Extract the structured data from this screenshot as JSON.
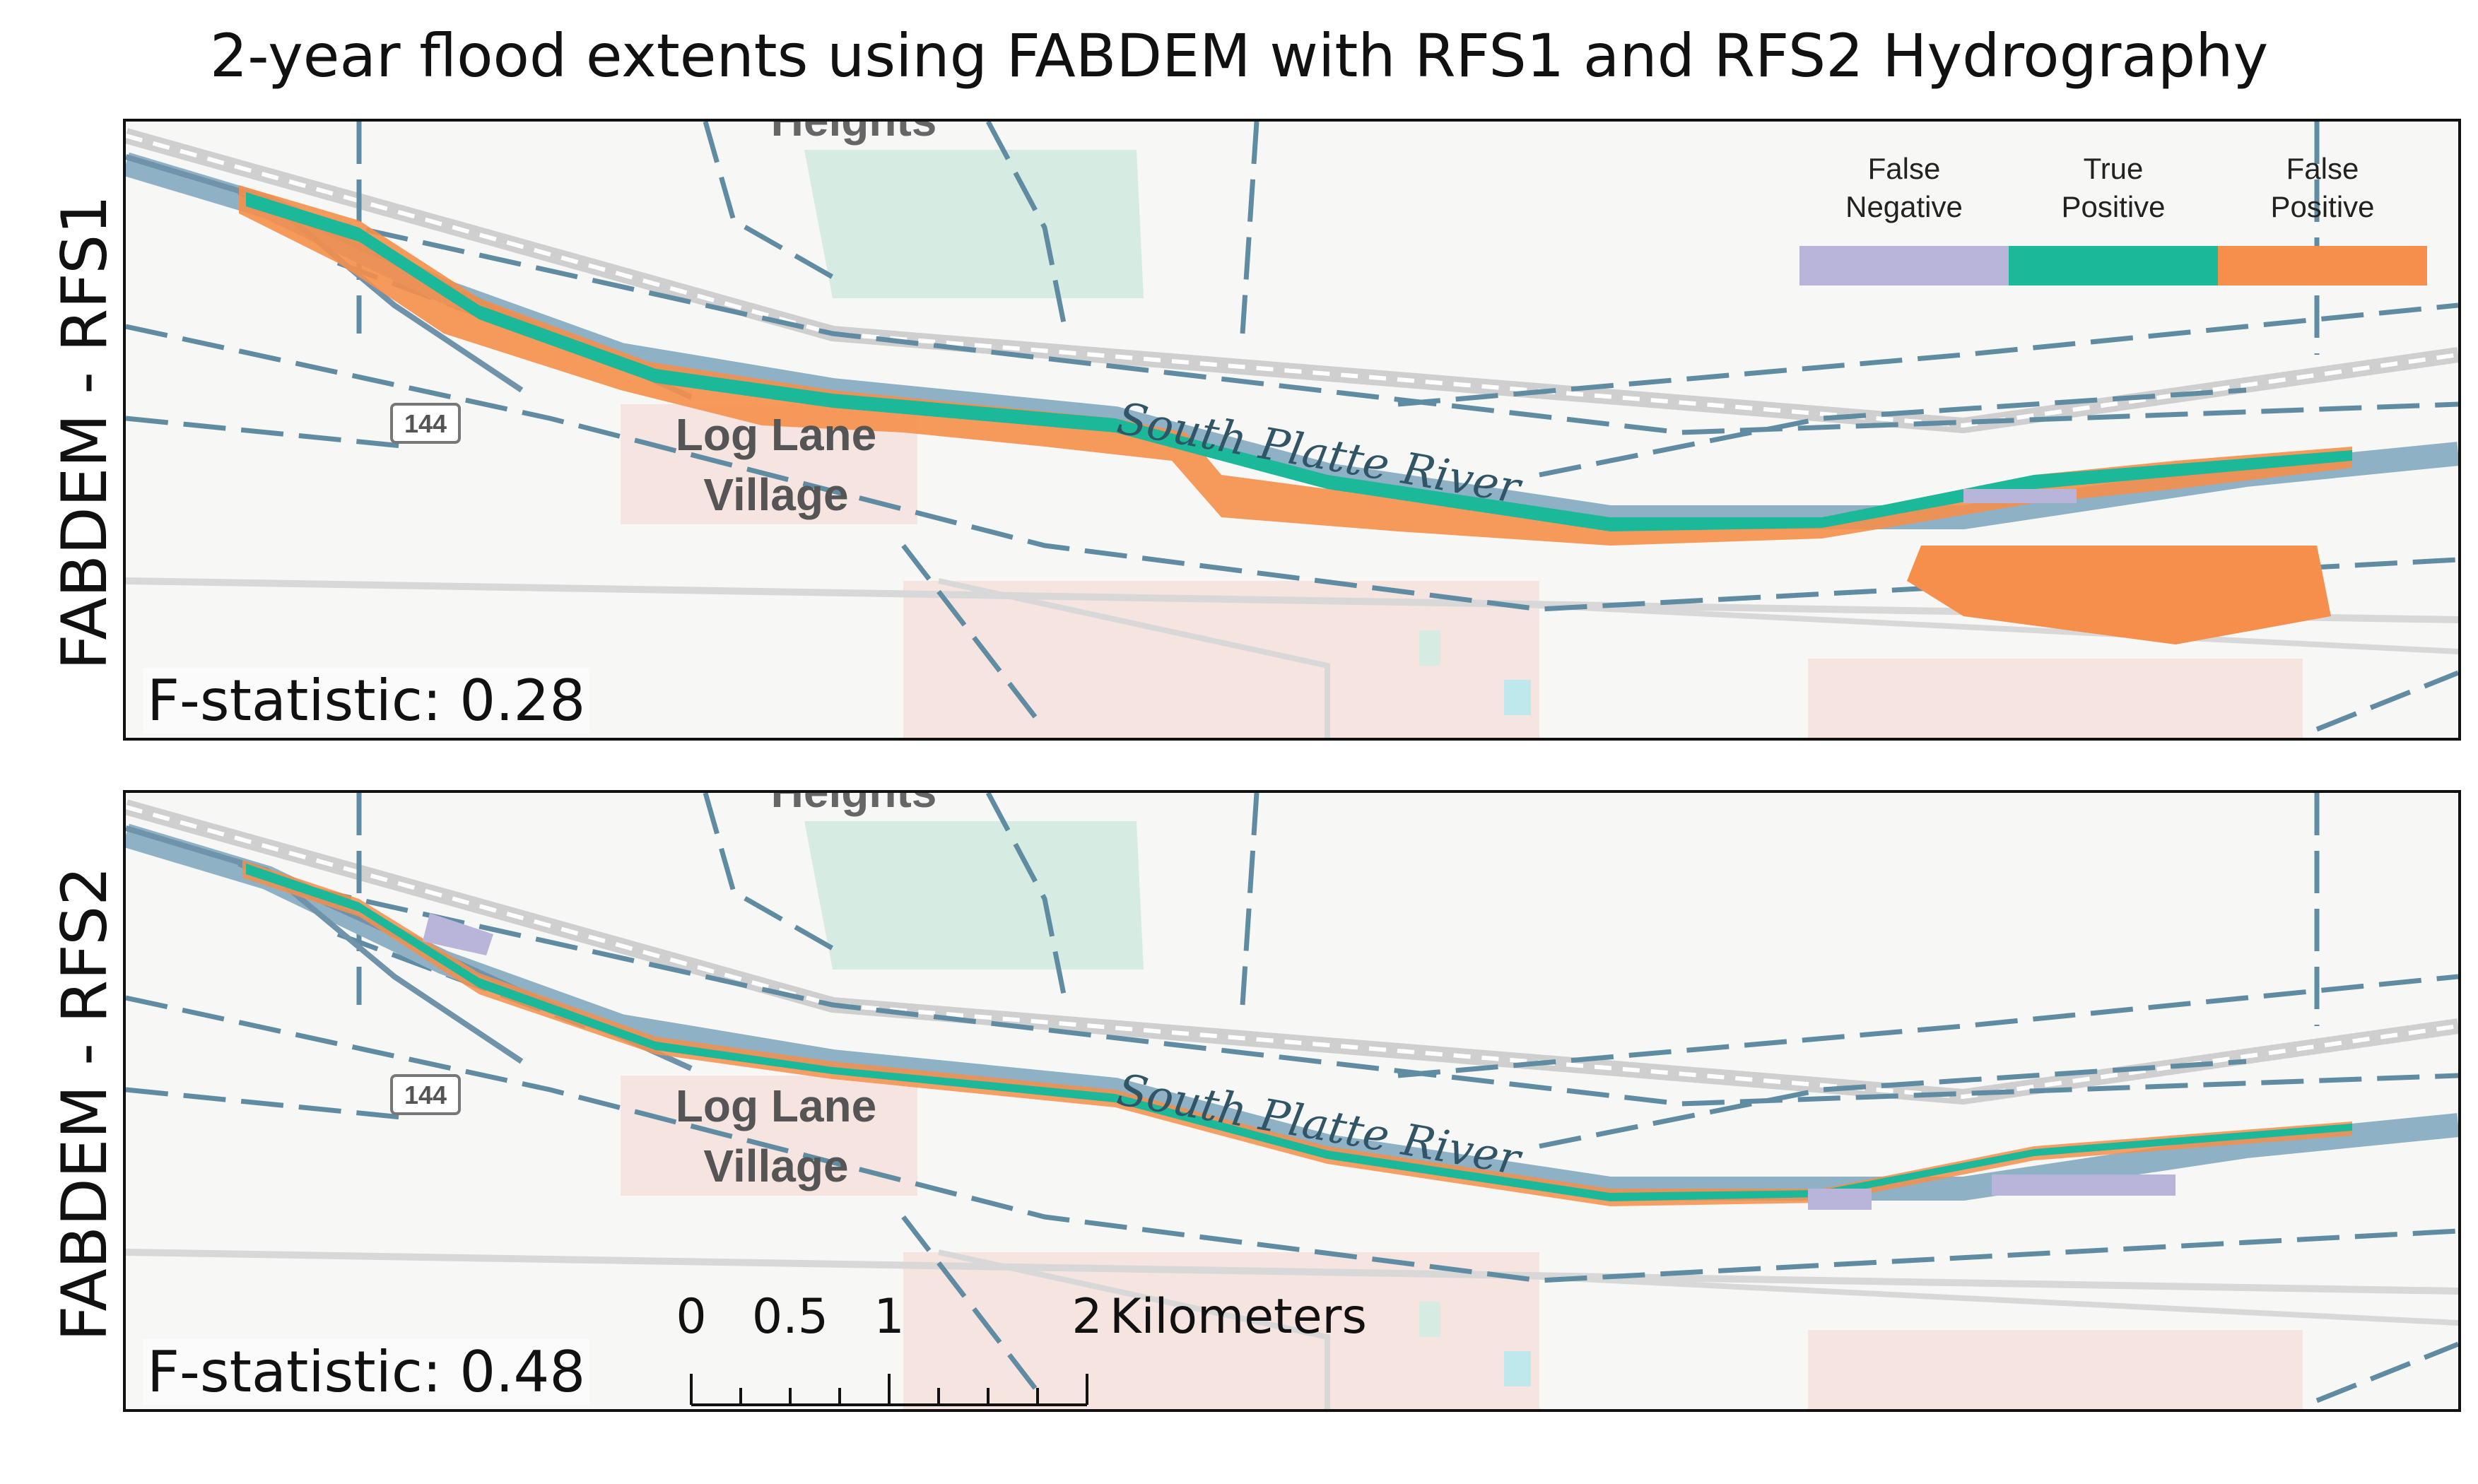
{
  "title": "2-year flood extents using FABDEM with RFS1 and RFS2 Hydrography",
  "panels": [
    {
      "row_label": "FABDEM - RFS1",
      "f_statistic": "F-statistic: 0.28"
    },
    {
      "row_label": "FABDEM - RFS2",
      "f_statistic": "F-statistic: 0.48"
    }
  ],
  "map_labels": {
    "town": "Log Lane",
    "town_line2": "Village",
    "heights_partial": "Heights",
    "river": "South Platte River",
    "highway_shield": "144"
  },
  "legend": {
    "items": [
      {
        "label_line1": "False",
        "label_line2": "Negative",
        "color": "#b9b4d9"
      },
      {
        "label_line1": "True",
        "label_line2": "Positive",
        "color": "#1bb89a"
      },
      {
        "label_line1": "False",
        "label_line2": "Positive",
        "color": "#f58f4b"
      }
    ]
  },
  "scale_bar": {
    "tick_labels": [
      "0",
      "0.5",
      "1",
      "2"
    ],
    "unit": "Kilometers"
  },
  "colors": {
    "river": "#8fb1c6",
    "boundary": "#5f8ca3",
    "road": "#d4d4d4",
    "urban": "#f6e4e0",
    "park": "#d6ece2"
  }
}
